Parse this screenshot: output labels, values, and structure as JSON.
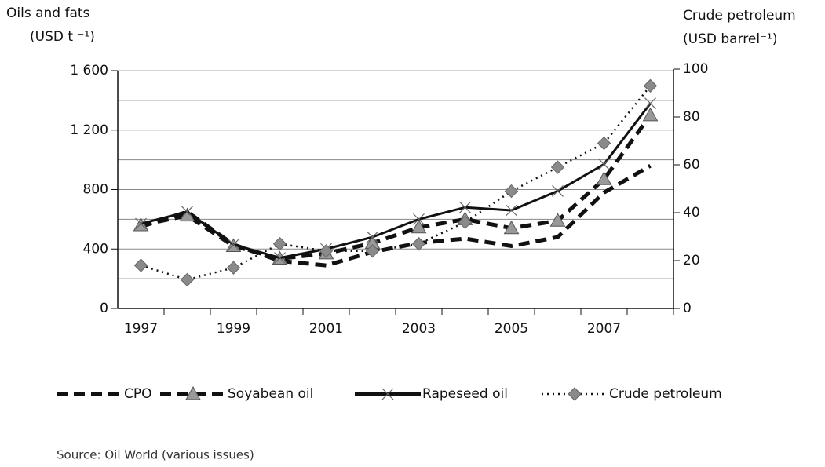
{
  "chart_data": {
    "type": "line",
    "y_title": [
      "Oils and fats",
      "(USD t ⁻¹)"
    ],
    "y2_title": [
      "Crude petroleum",
      "(USD barrel⁻¹)"
    ],
    "categories": [
      "1997",
      null,
      "1999",
      null,
      "2001",
      null,
      "2003",
      null,
      "2005",
      null,
      "2007",
      null
    ],
    "ylim": [
      0,
      1600
    ],
    "yticks": [
      0,
      400,
      800,
      {
        "value": 1200,
        "label": "1 200"
      },
      {
        "value": 1600,
        "label": "1 600"
      }
    ],
    "yminor": [
      200,
      600,
      1000,
      1400
    ],
    "y2lim": [
      0,
      100
    ],
    "y2ticks": [
      0,
      20,
      40,
      60,
      80,
      100
    ],
    "grid": true,
    "series": [
      {
        "name": "CPO",
        "color": "#111111",
        "dash": "14 8",
        "marker": "none",
        "values": [
          550,
          650,
          430,
          320,
          290,
          380,
          440,
          470,
          420,
          480,
          780,
          960
        ]
      },
      {
        "name": "Soyabean oil",
        "color": "#111111",
        "dash": "14 8",
        "marker": "triangle",
        "values": [
          560,
          625,
          420,
          335,
          370,
          440,
          545,
          600,
          540,
          590,
          870,
          1300
        ]
      },
      {
        "name": "Rapeseed oil",
        "color": "#111111",
        "dash": "none",
        "marker": "x",
        "values": [
          570,
          650,
          430,
          340,
          400,
          480,
          600,
          680,
          660,
          790,
          970,
          1380
        ]
      },
      {
        "name": "Crude petroleum",
        "color": "#111111",
        "dash": "2 5",
        "marker": "diamond",
        "axis": "y2",
        "values": [
          18,
          12,
          17,
          27,
          24,
          24,
          27,
          36,
          49,
          59,
          69,
          93
        ]
      }
    ],
    "source": "Source: Oil World (various issues)"
  }
}
